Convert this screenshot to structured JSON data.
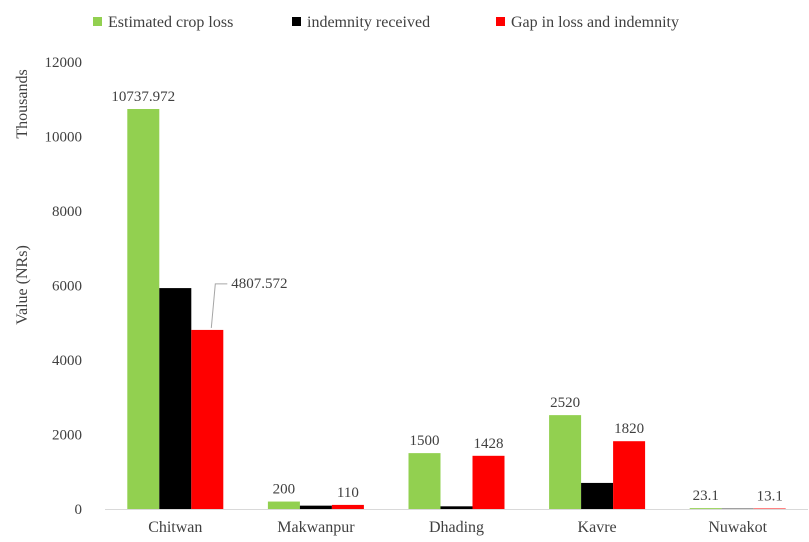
{
  "chart_data": {
    "type": "bar",
    "categories": [
      "Chitwan",
      "Makwanpur",
      "Dhading",
      "Kavre",
      "Nuwakot"
    ],
    "series": [
      {
        "name": "Estimated crop loss",
        "color": "#92d050",
        "values": [
          10737.972,
          200,
          1500,
          2520,
          23.1
        ],
        "labels": [
          "10737.972",
          "200",
          "1500",
          "2520",
          "23.1"
        ]
      },
      {
        "name": "indemnity received",
        "color": "#000000",
        "values": [
          5930.4,
          90,
          72,
          700,
          10
        ],
        "labels": [
          "",
          "",
          "",
          "",
          ""
        ]
      },
      {
        "name": "Gap in loss and indemnity",
        "color": "#ff0000",
        "values": [
          4807.572,
          110,
          1428,
          1820,
          13.1
        ],
        "labels": [
          "4807.572",
          "110",
          "1428",
          "1820",
          "13.1"
        ]
      }
    ],
    "ylabel": "Value (NRs)",
    "yunit": "Thousands",
    "ylim": [
      0,
      12000
    ],
    "yticks": [
      0,
      2000,
      4000,
      6000,
      8000,
      10000,
      12000
    ],
    "grid": false,
    "legend": "top-left"
  }
}
